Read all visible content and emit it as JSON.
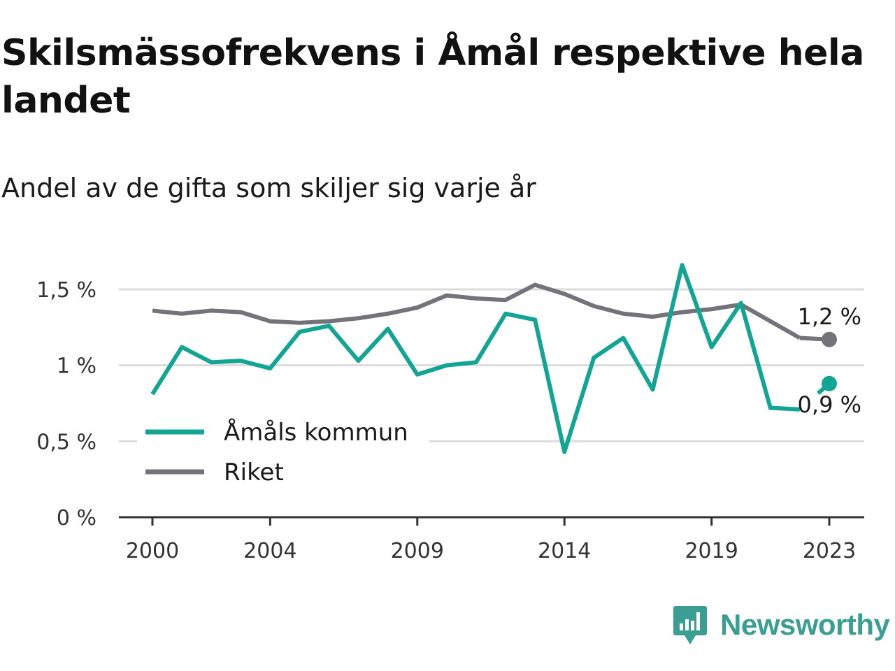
{
  "title": "Skilsmässofrekvens i Åmål respektive hela landet",
  "subtitle": "Andel av de gifta som skiljer sig varje år",
  "brand": {
    "name": "Newsworthy",
    "color": "#3a9e92",
    "icon": "newsworthy-bar-chart-icon"
  },
  "colors": {
    "grid": "#dcdcdc",
    "axis": "#333333",
    "tick_text": "#333333"
  },
  "chart_data": {
    "type": "line",
    "x": [
      2000,
      2001,
      2002,
      2003,
      2004,
      2005,
      2006,
      2007,
      2008,
      2009,
      2010,
      2011,
      2012,
      2013,
      2014,
      2015,
      2016,
      2017,
      2018,
      2019,
      2020,
      2021,
      2022,
      2023
    ],
    "x_ticks": [
      2000,
      2004,
      2009,
      2014,
      2019,
      2023
    ],
    "x_tick_labels": [
      "2000",
      "2004",
      "2009",
      "2014",
      "2019",
      "2023"
    ],
    "y_ticks": [
      0,
      0.5,
      1,
      1.5
    ],
    "y_tick_labels": [
      "0 %",
      "0,5 %",
      "1 %",
      "1,5 %"
    ],
    "ylim": [
      0,
      1.5
    ],
    "grid": true,
    "legend_position": "bottom-left",
    "series": [
      {
        "name": "Åmåls kommun",
        "color": "#12a594",
        "values": [
          0.81,
          1.12,
          1.02,
          1.03,
          0.98,
          1.22,
          1.26,
          1.03,
          1.24,
          0.94,
          1.0,
          1.02,
          1.34,
          1.3,
          0.43,
          1.05,
          1.18,
          0.84,
          1.66,
          1.12,
          1.41,
          0.72,
          0.71,
          0.88
        ],
        "end_label": "0,9 %"
      },
      {
        "name": "Riket",
        "color": "#75737a",
        "values": [
          1.36,
          1.34,
          1.36,
          1.35,
          1.29,
          1.28,
          1.29,
          1.31,
          1.34,
          1.38,
          1.46,
          1.44,
          1.43,
          1.53,
          1.47,
          1.39,
          1.34,
          1.32,
          1.35,
          1.37,
          1.4,
          1.29,
          1.18,
          1.17
        ],
        "end_label": "1,2 %"
      }
    ]
  }
}
